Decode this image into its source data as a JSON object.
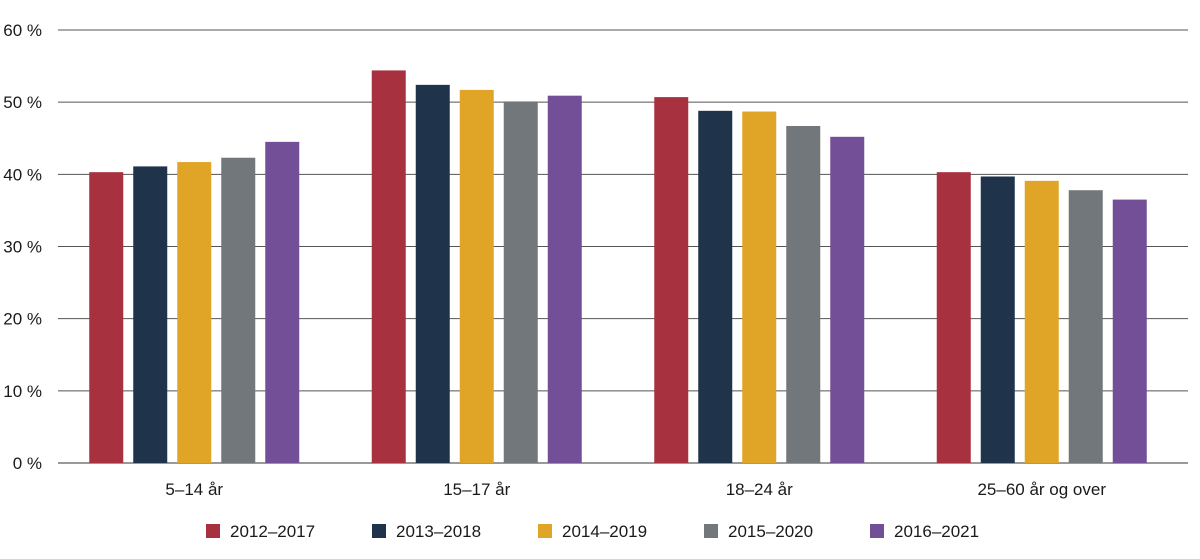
{
  "chart_data": {
    "type": "bar",
    "title": "",
    "xlabel": "",
    "ylabel": "",
    "categories": [
      "5–14 år",
      "15–17 år",
      "18–24 år",
      "25–60 år og over"
    ],
    "series": [
      {
        "name": "2012–2017",
        "color": "#a8313f",
        "values": [
          40.3,
          54.4,
          50.7,
          40.3
        ]
      },
      {
        "name": "2013–2018",
        "color": "#1f334b",
        "values": [
          41.1,
          52.4,
          48.8,
          39.7
        ]
      },
      {
        "name": "2014–2019",
        "color": "#e0a526",
        "values": [
          41.7,
          51.7,
          48.7,
          39.1
        ]
      },
      {
        "name": "2015–2020",
        "color": "#72777b",
        "values": [
          42.3,
          50.1,
          46.7,
          37.8
        ]
      },
      {
        "name": "2016–2021",
        "color": "#734f97",
        "values": [
          44.5,
          50.9,
          45.2,
          36.5
        ]
      }
    ],
    "ylim": [
      0,
      60
    ],
    "yticks": [
      0,
      10,
      20,
      30,
      40,
      50,
      60
    ],
    "ytick_labels": [
      "0 %",
      "10 %",
      "20 %",
      "30 %",
      "40 %",
      "50 %",
      "60 %"
    ],
    "grid": true,
    "legend": "bottom"
  }
}
